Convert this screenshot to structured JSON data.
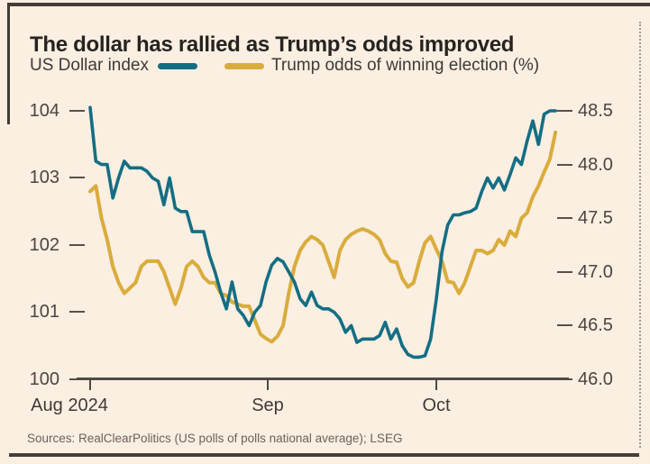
{
  "header": {
    "title": "The dollar has rallied as Trump’s odds improved"
  },
  "legend": [
    {
      "label": "US Dollar index",
      "color": "#146E83"
    },
    {
      "label": "Trump odds of winning election (%)",
      "color": "#D9AC3C"
    }
  ],
  "source": "Sources: RealClearPolitics (US polls of polls national average); LSEG",
  "colors": {
    "background": "#FBEFE2",
    "usd_line": "#146E83",
    "odds_line": "#D9AC3C",
    "rule": "#423C35"
  },
  "chart_data": {
    "type": "line",
    "title": "The dollar has rallied as Trump’s odds improved",
    "grid": false,
    "legend_position": "top",
    "x_axis": {
      "tick_labels": [
        "Aug 2024",
        "Sep",
        "Oct"
      ],
      "tick_days": [
        0,
        31,
        61
      ],
      "total_days": 83,
      "period": "1 Aug 2024 – 22 Oct 2024"
    },
    "left_axis": {
      "label": "US Dollar index",
      "ticks": [
        "104",
        "103",
        "102",
        "101",
        "100"
      ],
      "ylim": [
        100,
        104
      ]
    },
    "right_axis": {
      "label": "Trump odds of winning election (%)",
      "ticks": [
        "48.5",
        "48.0",
        "47.5",
        "47.0",
        "46.5",
        "46.0"
      ],
      "ylim": [
        46.0,
        48.5
      ]
    },
    "series": [
      {
        "name": "US Dollar index",
        "axis": "left",
        "color": "#146E83",
        "stroke_width": 3.6,
        "values": [
          104.05,
          103.25,
          103.2,
          103.2,
          102.7,
          103.0,
          103.25,
          103.15,
          103.15,
          103.15,
          103.1,
          103.0,
          102.95,
          102.6,
          103.0,
          102.55,
          102.5,
          102.5,
          102.2,
          102.2,
          102.2,
          101.85,
          101.6,
          101.3,
          101.05,
          101.45,
          101.05,
          100.95,
          100.8,
          101.0,
          101.1,
          101.45,
          101.7,
          101.8,
          101.75,
          101.6,
          101.45,
          101.2,
          101.1,
          101.3,
          101.1,
          101.05,
          101.05,
          101.0,
          100.9,
          100.7,
          100.8,
          100.55,
          100.6,
          100.6,
          100.6,
          100.65,
          100.85,
          100.6,
          100.75,
          100.5,
          100.37,
          100.33,
          100.33,
          100.35,
          100.6,
          101.2,
          101.9,
          102.3,
          102.45,
          102.45,
          102.48,
          102.5,
          102.55,
          102.8,
          103.0,
          102.85,
          103.0,
          102.82,
          103.05,
          103.3,
          103.2,
          103.55,
          103.85,
          103.5,
          103.95,
          104.0,
          104.0
        ]
      },
      {
        "name": "Trump odds of winning election (%)",
        "axis": "right",
        "color": "#D9AC3C",
        "stroke_width": 4,
        "values": [
          47.75,
          47.8,
          47.5,
          47.3,
          47.05,
          46.9,
          46.8,
          46.85,
          46.9,
          47.05,
          47.1,
          47.1,
          47.1,
          47.0,
          46.85,
          46.7,
          46.85,
          47.05,
          47.1,
          47.05,
          46.95,
          46.9,
          46.9,
          46.8,
          46.78,
          46.72,
          46.7,
          46.68,
          46.68,
          46.55,
          46.42,
          46.38,
          46.35,
          46.4,
          46.5,
          46.8,
          47.05,
          47.2,
          47.28,
          47.33,
          47.3,
          47.25,
          47.1,
          46.95,
          47.2,
          47.3,
          47.35,
          47.38,
          47.4,
          47.38,
          47.35,
          47.3,
          47.17,
          47.1,
          47.09,
          46.94,
          46.86,
          46.9,
          47.1,
          47.27,
          47.33,
          47.21,
          47.1,
          46.91,
          46.9,
          46.8,
          46.9,
          47.05,
          47.2,
          47.2,
          47.17,
          47.2,
          47.3,
          47.25,
          47.38,
          47.33,
          47.5,
          47.55,
          47.7,
          47.8,
          47.93,
          48.05,
          48.3
        ]
      }
    ]
  }
}
